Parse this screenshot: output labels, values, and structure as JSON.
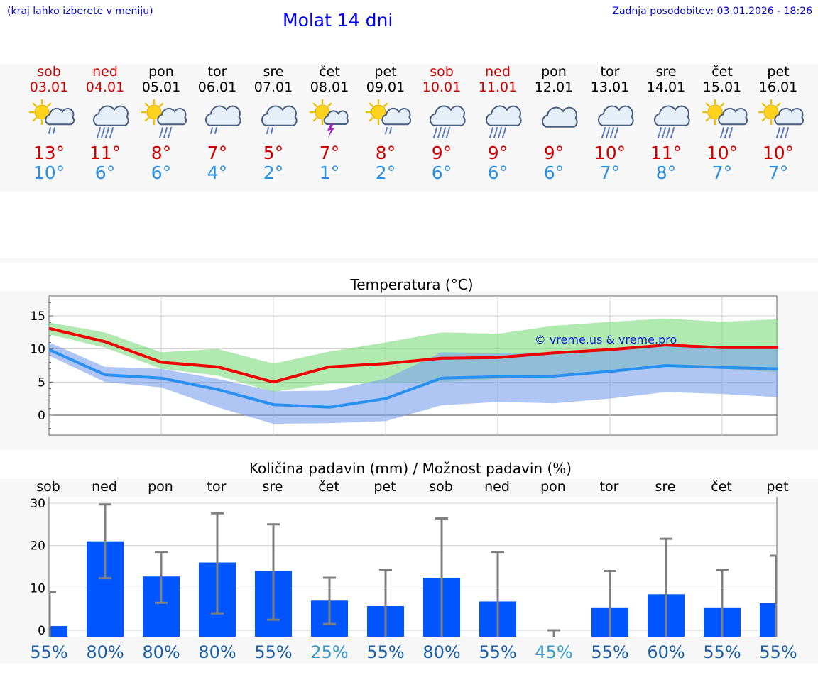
{
  "header": {
    "menu_hint": "(kraj lahko izberete v meniju)",
    "title": "Molat 14 dni",
    "updated": "Zadnja posodobitev: 03.01.2026 - 18:26"
  },
  "colors": {
    "weekend": "#cc0000",
    "max_temp": "#cc0000",
    "min_temp": "#2a8fe0",
    "bar": "#0055ff",
    "range_max": "#7ddc7d",
    "range_min": "#7aa0ee",
    "watermark": "#1122cc"
  },
  "days": [
    {
      "name": "sob",
      "date": "03.01",
      "weekend": true,
      "icon": "sun-cloud-rain-icon",
      "tmax": "13°",
      "tmin": "10°"
    },
    {
      "name": "ned",
      "date": "04.01",
      "weekend": true,
      "icon": "cloud-heavy-rain-icon",
      "tmax": "11°",
      "tmin": "6°"
    },
    {
      "name": "pon",
      "date": "05.01",
      "weekend": false,
      "icon": "sun-cloud-heavy-rain-icon",
      "tmax": "8°",
      "tmin": "6°"
    },
    {
      "name": "tor",
      "date": "06.01",
      "weekend": false,
      "icon": "cloud-rain-icon",
      "tmax": "7°",
      "tmin": "4°"
    },
    {
      "name": "sre",
      "date": "07.01",
      "weekend": false,
      "icon": "cloud-rain-icon",
      "tmax": "5°",
      "tmin": "2°"
    },
    {
      "name": "čet",
      "date": "08.01",
      "weekend": false,
      "icon": "sun-cloud-thunder-icon",
      "tmax": "7°",
      "tmin": "1°"
    },
    {
      "name": "pet",
      "date": "09.01",
      "weekend": false,
      "icon": "sun-cloud-rain-icon",
      "tmax": "8°",
      "tmin": "2°"
    },
    {
      "name": "sob",
      "date": "10.01",
      "weekend": true,
      "icon": "cloud-heavy-rain-icon",
      "tmax": "9°",
      "tmin": "6°"
    },
    {
      "name": "ned",
      "date": "11.01",
      "weekend": true,
      "icon": "cloud-heavy-rain-icon",
      "tmax": "9°",
      "tmin": "6°"
    },
    {
      "name": "pon",
      "date": "12.01",
      "weekend": false,
      "icon": "cloud-icon",
      "tmax": "9°",
      "tmin": "6°"
    },
    {
      "name": "tor",
      "date": "13.01",
      "weekend": false,
      "icon": "cloud-heavy-rain-icon",
      "tmax": "10°",
      "tmin": "7°"
    },
    {
      "name": "sre",
      "date": "14.01",
      "weekend": false,
      "icon": "cloud-heavy-rain-icon",
      "tmax": "11°",
      "tmin": "8°"
    },
    {
      "name": "čet",
      "date": "15.01",
      "weekend": false,
      "icon": "sun-cloud-heavy-rain-icon",
      "tmax": "10°",
      "tmin": "7°"
    },
    {
      "name": "pet",
      "date": "16.01",
      "weekend": false,
      "icon": "sun-cloud-heavy-rain-icon",
      "tmax": "10°",
      "tmin": "7°"
    }
  ],
  "chart_data": [
    {
      "type": "line",
      "title": "Temperatura (°C)",
      "watermark": "© vreme.us & vreme.pro",
      "ylim": [
        -3,
        18
      ],
      "yticks": [
        0,
        5,
        10,
        15
      ],
      "x": [
        "sob",
        "ned",
        "pon",
        "tor",
        "sre",
        "čet",
        "pet",
        "sob",
        "ned",
        "pon",
        "tor",
        "sre",
        "čet",
        "pet"
      ],
      "series": [
        {
          "name": "max",
          "values": [
            13.1,
            11.1,
            8.0,
            7.3,
            5.0,
            7.3,
            7.8,
            8.6,
            8.7,
            9.4,
            9.9,
            10.6,
            10.2,
            10.2
          ]
        },
        {
          "name": "min",
          "values": [
            9.9,
            6.1,
            5.6,
            3.9,
            1.6,
            1.2,
            2.5,
            5.6,
            5.8,
            5.9,
            6.6,
            7.5,
            7.2,
            7.0
          ]
        }
      ],
      "bands": [
        {
          "name": "max_range",
          "lower": [
            12.2,
            10.2,
            7.0,
            6.0,
            3.5,
            4.8,
            4.8,
            5.0,
            5.5,
            6.0,
            6.5,
            7.5,
            7.0,
            6.5
          ],
          "upper": [
            14.0,
            12.5,
            9.5,
            10.0,
            7.8,
            9.6,
            11.0,
            12.5,
            12.3,
            13.5,
            14.1,
            14.6,
            14.1,
            14.5
          ]
        },
        {
          "name": "min_range",
          "lower": [
            9.0,
            5.0,
            4.2,
            1.2,
            -1.3,
            -1.2,
            -0.9,
            1.5,
            2.0,
            1.8,
            2.5,
            3.5,
            3.2,
            2.7
          ],
          "upper": [
            11.0,
            7.3,
            7.0,
            5.5,
            3.6,
            3.7,
            5.5,
            9.5,
            9.4,
            9.5,
            10.0,
            10.5,
            10.3,
            10.5
          ]
        }
      ]
    },
    {
      "type": "bar",
      "title": "Količina padavin (mm) / Možnost padavin (%)",
      "ylim": [
        -1.5,
        31.5
      ],
      "yticks": [
        0,
        10,
        20,
        30
      ],
      "categories": [
        "sob",
        "ned",
        "pon",
        "tor",
        "sre",
        "čet",
        "pet",
        "sob",
        "ned",
        "pon",
        "tor",
        "sre",
        "čet",
        "pet"
      ],
      "values": [
        1.0,
        21.0,
        12.7,
        16.0,
        14.0,
        7.0,
        5.7,
        12.4,
        6.8,
        0.0,
        5.4,
        8.5,
        5.4,
        6.4
      ],
      "error_low": [
        0.0,
        12.3,
        6.5,
        4.0,
        2.5,
        1.5,
        0.0,
        0.0,
        0.0,
        0.0,
        0.0,
        0.0,
        0.0,
        0.0
      ],
      "error_high": [
        9.0,
        29.7,
        18.5,
        27.6,
        25.0,
        12.4,
        14.3,
        26.4,
        18.5,
        0.0,
        14.0,
        21.6,
        14.3,
        17.6
      ],
      "probability": [
        "55%",
        "80%",
        "80%",
        "80%",
        "55%",
        "25%",
        "55%",
        "80%",
        "55%",
        "45%",
        "55%",
        "60%",
        "55%",
        "55%"
      ]
    }
  ]
}
